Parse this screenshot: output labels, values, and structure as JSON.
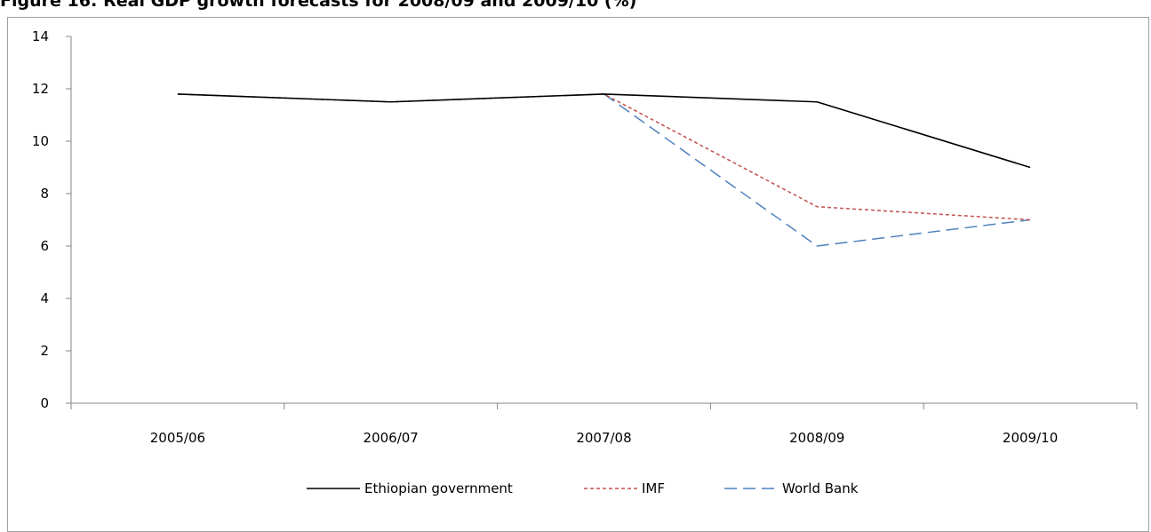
{
  "chart_data": {
    "type": "line",
    "title": "Figure 16: Real GDP growth forecasts for 2008/09 and 2009/10 (%)",
    "xlabel": "",
    "ylabel": "",
    "categories": [
      "2005/06",
      "2006/07",
      "2007/08",
      "2008/09",
      "2009/10"
    ],
    "ylim": [
      0,
      14
    ],
    "yticks": [
      0,
      2,
      4,
      6,
      8,
      10,
      12,
      14
    ],
    "grid": false,
    "legend_position": "bottom",
    "series": [
      {
        "name": "Ethiopian government",
        "values": [
          11.8,
          11.5,
          11.8,
          11.5,
          9.0
        ],
        "color": "#000000",
        "style": "solid"
      },
      {
        "name": "IMF",
        "values": [
          11.8,
          11.5,
          11.8,
          7.5,
          7.0
        ],
        "color": "#c0504d",
        "style": "dotted"
      },
      {
        "name": "World Bank",
        "values": [
          null,
          null,
          11.8,
          6.0,
          7.0
        ],
        "color": "#4f81bd",
        "style": "dashed"
      }
    ]
  }
}
